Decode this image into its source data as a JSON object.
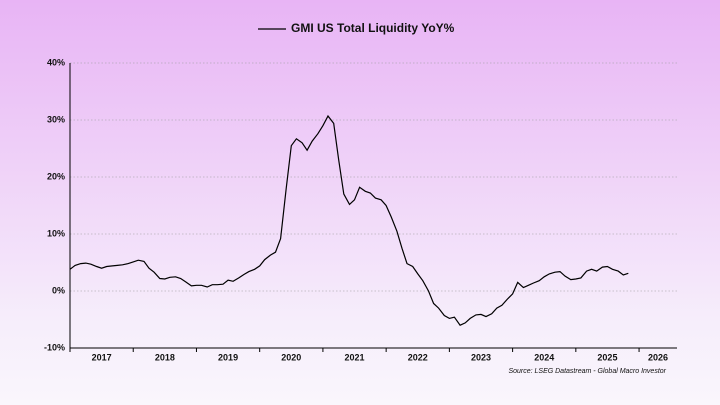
{
  "chart_data": {
    "type": "line",
    "title": "GMI US Total Liquidity YoY%",
    "source": "Source: LSEG Datastream - Global Macro Investor",
    "series": [
      {
        "name": "GMI US Total Liquidity YoY%",
        "color": "#000000",
        "x": [
          2017.0,
          2017.08,
          2017.17,
          2017.25,
          2017.33,
          2017.42,
          2017.5,
          2017.58,
          2017.67,
          2017.75,
          2017.83,
          2017.92,
          2018.0,
          2018.08,
          2018.17,
          2018.25,
          2018.33,
          2018.42,
          2018.5,
          2018.58,
          2018.67,
          2018.75,
          2018.83,
          2018.92,
          2019.0,
          2019.08,
          2019.17,
          2019.25,
          2019.33,
          2019.42,
          2019.5,
          2019.58,
          2019.67,
          2019.75,
          2019.83,
          2019.92,
          2020.0,
          2020.08,
          2020.17,
          2020.25,
          2020.33,
          2020.42,
          2020.5,
          2020.58,
          2020.67,
          2020.75,
          2020.83,
          2020.92,
          2021.0,
          2021.08,
          2021.17,
          2021.25,
          2021.33,
          2021.42,
          2021.5,
          2021.58,
          2021.67,
          2021.75,
          2021.83,
          2021.92,
          2022.0,
          2022.08,
          2022.17,
          2022.25,
          2022.33,
          2022.42,
          2022.5,
          2022.58,
          2022.67,
          2022.75,
          2022.83,
          2022.92,
          2023.0,
          2023.08,
          2023.17,
          2023.25,
          2023.33,
          2023.42,
          2023.5,
          2023.58,
          2023.67,
          2023.75,
          2023.83,
          2023.92,
          2024.0,
          2024.08,
          2024.17,
          2024.25,
          2024.33,
          2024.42,
          2024.5,
          2024.58,
          2024.67,
          2024.75,
          2024.83,
          2024.92,
          2025.0,
          2025.08,
          2025.17,
          2025.25,
          2025.33,
          2025.42,
          2025.5,
          2025.58,
          2025.67,
          2025.75,
          2025.83
        ],
        "values": [
          3.8,
          4.5,
          4.8,
          4.9,
          4.7,
          4.3,
          4.0,
          4.3,
          4.4,
          4.5,
          4.6,
          4.8,
          5.1,
          5.4,
          5.2,
          4.0,
          3.3,
          2.2,
          2.1,
          2.4,
          2.5,
          2.2,
          1.6,
          0.9,
          1.0,
          1.0,
          0.7,
          1.1,
          1.1,
          1.2,
          1.9,
          1.7,
          2.3,
          2.9,
          3.4,
          3.8,
          4.4,
          5.5,
          6.3,
          6.8,
          9.2,
          18,
          25.5,
          26.7,
          26.0,
          24.7,
          26.3,
          27.6,
          29.0,
          30.7,
          29.4,
          23,
          17,
          15.2,
          16,
          18.2,
          17.5,
          17.2,
          16.3,
          16.0,
          15,
          13,
          10.5,
          7.5,
          4.8,
          4.3,
          3.0,
          1.8,
          0,
          -2.2,
          -3.0,
          -4.3,
          -4.8,
          -4.6,
          -6.0,
          -5.6,
          -4.8,
          -4.2,
          -4.1,
          -4.5,
          -4.0,
          -3.0,
          -2.5,
          -1.4,
          -0.5,
          1.5,
          0.6,
          1.0,
          1.4,
          1.8,
          2.5,
          3.0,
          3.3,
          3.4,
          2.6,
          2.0,
          2.1,
          2.3,
          3.5,
          3.8,
          3.5,
          4.2,
          4.3,
          3.8,
          3.5,
          2.8,
          3.1
        ]
      }
    ],
    "xlim": [
      2017,
      2026.6
    ],
    "xticks": [
      2017,
      2018,
      2019,
      2020,
      2021,
      2022,
      2023,
      2024,
      2025,
      2026
    ],
    "ylim": [
      -10,
      40
    ],
    "yticks": [
      {
        "value": -10,
        "label": "-10%"
      },
      {
        "value": 0,
        "label": "0%"
      },
      {
        "value": 10,
        "label": "10%"
      },
      {
        "value": 20,
        "label": "20%"
      },
      {
        "value": 30,
        "label": "30%"
      },
      {
        "value": 40,
        "label": "40%"
      }
    ],
    "grid": true
  }
}
